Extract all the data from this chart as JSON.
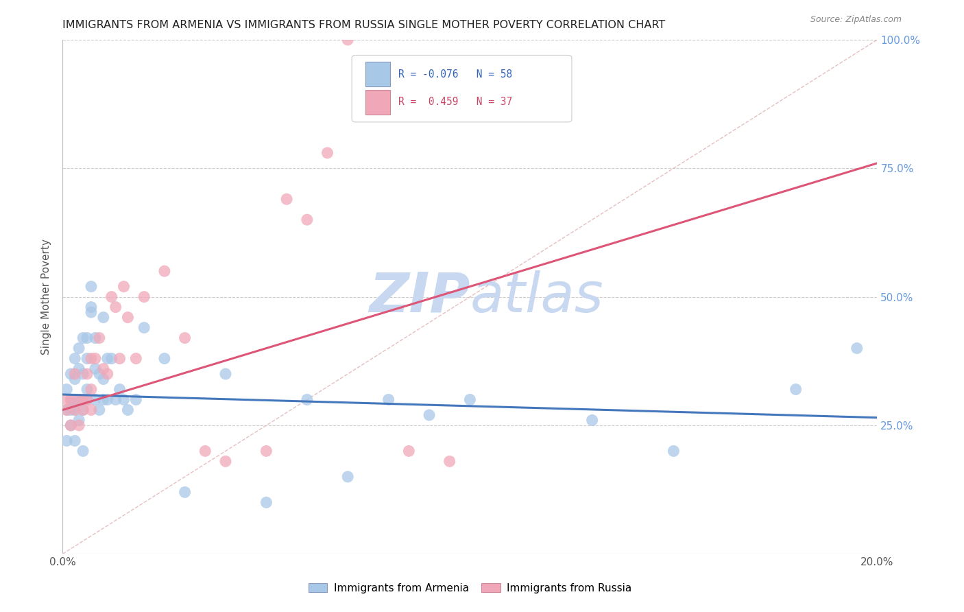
{
  "title": "IMMIGRANTS FROM ARMENIA VS IMMIGRANTS FROM RUSSIA SINGLE MOTHER POVERTY CORRELATION CHART",
  "source": "Source: ZipAtlas.com",
  "ylabel": "Single Mother Poverty",
  "y_tick_labels_right": [
    "25.0%",
    "50.0%",
    "75.0%",
    "100.0%"
  ],
  "xlim": [
    0.0,
    0.2
  ],
  "ylim": [
    0.0,
    1.0
  ],
  "armenia_color": "#a8c8e8",
  "russia_color": "#f0a8b8",
  "armenia_line_color": "#4477bb",
  "russia_line_color": "#dd5577",
  "background_color": "#ffffff",
  "grid_color": "#cccccc",
  "right_axis_color": "#6699dd",
  "watermark_color": "#c8d8f0",
  "diag_color": "#e0b0b0",
  "armenia_line_y0": 0.31,
  "armenia_line_y1": 0.265,
  "russia_line_y0": 0.28,
  "russia_line_y1": 0.76,
  "armenia_scatter_x": [
    0.001,
    0.001,
    0.001,
    0.002,
    0.002,
    0.002,
    0.002,
    0.003,
    0.003,
    0.003,
    0.003,
    0.003,
    0.004,
    0.004,
    0.004,
    0.004,
    0.005,
    0.005,
    0.005,
    0.005,
    0.005,
    0.006,
    0.006,
    0.006,
    0.006,
    0.007,
    0.007,
    0.007,
    0.008,
    0.008,
    0.008,
    0.009,
    0.009,
    0.01,
    0.01,
    0.01,
    0.011,
    0.011,
    0.012,
    0.013,
    0.014,
    0.015,
    0.016,
    0.018,
    0.02,
    0.025,
    0.03,
    0.04,
    0.05,
    0.06,
    0.07,
    0.08,
    0.09,
    0.1,
    0.13,
    0.15,
    0.18,
    0.195
  ],
  "armenia_scatter_y": [
    0.28,
    0.32,
    0.22,
    0.3,
    0.28,
    0.25,
    0.35,
    0.3,
    0.28,
    0.34,
    0.38,
    0.22,
    0.3,
    0.36,
    0.4,
    0.26,
    0.3,
    0.35,
    0.28,
    0.42,
    0.2,
    0.32,
    0.38,
    0.42,
    0.3,
    0.47,
    0.52,
    0.48,
    0.36,
    0.42,
    0.3,
    0.35,
    0.28,
    0.46,
    0.34,
    0.3,
    0.38,
    0.3,
    0.38,
    0.3,
    0.32,
    0.3,
    0.28,
    0.3,
    0.44,
    0.38,
    0.12,
    0.35,
    0.1,
    0.3,
    0.15,
    0.3,
    0.27,
    0.3,
    0.26,
    0.2,
    0.32,
    0.4
  ],
  "russia_scatter_x": [
    0.001,
    0.001,
    0.002,
    0.002,
    0.003,
    0.003,
    0.004,
    0.004,
    0.005,
    0.005,
    0.006,
    0.006,
    0.007,
    0.007,
    0.007,
    0.008,
    0.009,
    0.01,
    0.011,
    0.012,
    0.013,
    0.014,
    0.015,
    0.016,
    0.018,
    0.02,
    0.025,
    0.03,
    0.035,
    0.04,
    0.05,
    0.055,
    0.06,
    0.065,
    0.07,
    0.085,
    0.095
  ],
  "russia_scatter_y": [
    0.3,
    0.28,
    0.3,
    0.25,
    0.35,
    0.28,
    0.3,
    0.25,
    0.3,
    0.28,
    0.35,
    0.3,
    0.32,
    0.28,
    0.38,
    0.38,
    0.42,
    0.36,
    0.35,
    0.5,
    0.48,
    0.38,
    0.52,
    0.46,
    0.38,
    0.5,
    0.55,
    0.42,
    0.2,
    0.18,
    0.2,
    0.69,
    0.65,
    0.78,
    1.0,
    0.2,
    0.18
  ]
}
